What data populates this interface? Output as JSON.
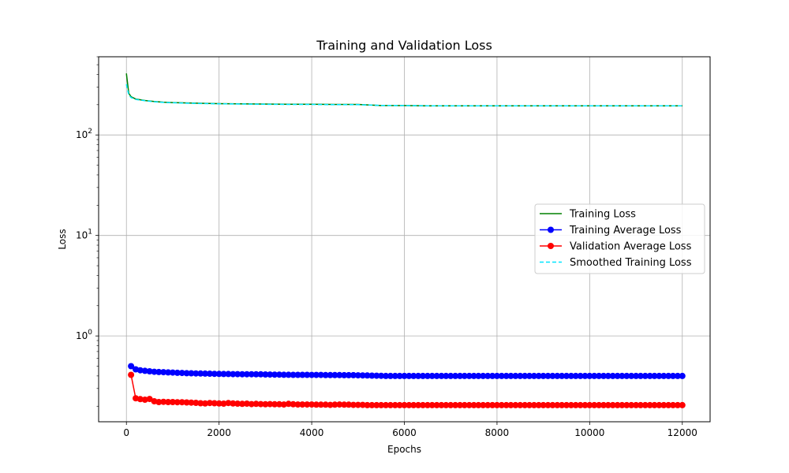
{
  "chart_data": {
    "type": "line",
    "title": "Training and Validation Loss",
    "xlabel": "Epochs",
    "ylabel": "Loss",
    "yscale": "log",
    "xlim": [
      -600,
      12600
    ],
    "ylim": [
      0.14,
      600
    ],
    "xticks": [
      0,
      2000,
      4000,
      6000,
      8000,
      10000,
      12000
    ],
    "xtick_labels": [
      "0",
      "2000",
      "4000",
      "6000",
      "8000",
      "10000",
      "12000"
    ],
    "yticks": [
      1,
      10,
      100
    ],
    "grid": true,
    "legend_placement": "center-right",
    "series": [
      {
        "name": "Training Loss",
        "color": "#008000",
        "style": "solid",
        "x": [
          0,
          50,
          100,
          200,
          400,
          600,
          800,
          1000,
          1500,
          2000,
          2500,
          3000,
          3500,
          4000,
          4500,
          5000,
          5500,
          6000,
          6500,
          7000,
          7500,
          8000,
          8500,
          9000,
          9500,
          10000,
          10500,
          11000,
          11500,
          12000
        ],
        "values": [
          410,
          260,
          240,
          228,
          220,
          215,
          212,
          210,
          207,
          205,
          204,
          203,
          202,
          202,
          201,
          201,
          196,
          196,
          195,
          195,
          195,
          195,
          195,
          195,
          195,
          195,
          195,
          195,
          195,
          195
        ]
      },
      {
        "name": "Training Average Loss",
        "color": "#0000ff",
        "style": "solid-marker",
        "x": [
          100,
          200,
          300,
          400,
          500,
          600,
          700,
          800,
          900,
          1000,
          1100,
          1200,
          1300,
          1400,
          1500,
          1600,
          1700,
          1800,
          1900,
          2000,
          2100,
          2200,
          2300,
          2400,
          2500,
          2600,
          2700,
          2800,
          2900,
          3000,
          3100,
          3200,
          3300,
          3400,
          3500,
          3600,
          3700,
          3800,
          3900,
          4000,
          4100,
          4200,
          4300,
          4400,
          4500,
          4600,
          4700,
          4800,
          4900,
          5000,
          5100,
          5200,
          5300,
          5400,
          5500,
          5600,
          5700,
          5800,
          5900,
          6000,
          6100,
          6200,
          6300,
          6400,
          6500,
          6600,
          6700,
          6800,
          6900,
          7000,
          7100,
          7200,
          7300,
          7400,
          7500,
          7600,
          7700,
          7800,
          7900,
          8000,
          8100,
          8200,
          8300,
          8400,
          8500,
          8600,
          8700,
          8800,
          8900,
          9000,
          9100,
          9200,
          9300,
          9400,
          9500,
          9600,
          9700,
          9800,
          9900,
          10000,
          10100,
          10200,
          10300,
          10400,
          10500,
          10600,
          10700,
          10800,
          10900,
          11000,
          11100,
          11200,
          11300,
          11400,
          11500,
          11600,
          11700,
          11800,
          11900,
          12000
        ],
        "values": [
          0.5,
          0.465,
          0.455,
          0.45,
          0.445,
          0.44,
          0.438,
          0.436,
          0.434,
          0.432,
          0.43,
          0.428,
          0.426,
          0.425,
          0.424,
          0.423,
          0.422,
          0.421,
          0.42,
          0.419,
          0.418,
          0.418,
          0.417,
          0.417,
          0.416,
          0.416,
          0.416,
          0.415,
          0.415,
          0.414,
          0.413,
          0.412,
          0.412,
          0.411,
          0.411,
          0.41,
          0.41,
          0.41,
          0.41,
          0.409,
          0.409,
          0.409,
          0.408,
          0.408,
          0.408,
          0.408,
          0.407,
          0.407,
          0.407,
          0.406,
          0.405,
          0.404,
          0.403,
          0.402,
          0.401,
          0.4,
          0.4,
          0.4,
          0.4,
          0.4,
          0.4,
          0.4,
          0.4,
          0.4,
          0.4,
          0.4,
          0.4,
          0.4,
          0.4,
          0.4,
          0.4,
          0.4,
          0.4,
          0.4,
          0.4,
          0.4,
          0.4,
          0.4,
          0.4,
          0.4,
          0.4,
          0.4,
          0.4,
          0.4,
          0.4,
          0.4,
          0.4,
          0.4,
          0.4,
          0.4,
          0.4,
          0.4,
          0.4,
          0.4,
          0.4,
          0.4,
          0.4,
          0.4,
          0.4,
          0.4,
          0.4,
          0.4,
          0.4,
          0.4,
          0.4,
          0.4,
          0.4,
          0.4,
          0.4,
          0.4,
          0.4,
          0.4,
          0.4,
          0.4,
          0.4,
          0.4,
          0.4,
          0.4,
          0.4,
          0.4
        ]
      },
      {
        "name": "Validation Average Loss",
        "color": "#ff0000",
        "style": "solid-marker",
        "x": [
          100,
          200,
          300,
          400,
          500,
          600,
          700,
          800,
          900,
          1000,
          1100,
          1200,
          1300,
          1400,
          1500,
          1600,
          1700,
          1800,
          1900,
          2000,
          2100,
          2200,
          2300,
          2400,
          2500,
          2600,
          2700,
          2800,
          2900,
          3000,
          3100,
          3200,
          3300,
          3400,
          3500,
          3600,
          3700,
          3800,
          3900,
          4000,
          4100,
          4200,
          4300,
          4400,
          4500,
          4600,
          4700,
          4800,
          4900,
          5000,
          5100,
          5200,
          5300,
          5400,
          5500,
          5600,
          5700,
          5800,
          5900,
          6000,
          6100,
          6200,
          6300,
          6400,
          6500,
          6600,
          6700,
          6800,
          6900,
          7000,
          7100,
          7200,
          7300,
          7400,
          7500,
          7600,
          7700,
          7800,
          7900,
          8000,
          8100,
          8200,
          8300,
          8400,
          8500,
          8600,
          8700,
          8800,
          8900,
          9000,
          9100,
          9200,
          9300,
          9400,
          9500,
          9600,
          9700,
          9800,
          9900,
          10000,
          10100,
          10200,
          10300,
          10400,
          10500,
          10600,
          10700,
          10800,
          10900,
          11000,
          11100,
          11200,
          11300,
          11400,
          11500,
          11600,
          11700,
          11800,
          11900,
          12000
        ],
        "values": [
          0.41,
          0.24,
          0.235,
          0.232,
          0.236,
          0.224,
          0.22,
          0.221,
          0.22,
          0.22,
          0.219,
          0.219,
          0.218,
          0.217,
          0.216,
          0.214,
          0.213,
          0.215,
          0.214,
          0.213,
          0.212,
          0.215,
          0.213,
          0.212,
          0.211,
          0.212,
          0.21,
          0.211,
          0.21,
          0.209,
          0.21,
          0.209,
          0.209,
          0.208,
          0.211,
          0.209,
          0.208,
          0.208,
          0.208,
          0.208,
          0.207,
          0.207,
          0.207,
          0.206,
          0.207,
          0.208,
          0.207,
          0.207,
          0.206,
          0.206,
          0.206,
          0.205,
          0.205,
          0.205,
          0.205,
          0.205,
          0.205,
          0.205,
          0.205,
          0.205,
          0.205,
          0.205,
          0.205,
          0.205,
          0.205,
          0.205,
          0.205,
          0.205,
          0.205,
          0.205,
          0.205,
          0.205,
          0.205,
          0.205,
          0.205,
          0.205,
          0.205,
          0.205,
          0.205,
          0.205,
          0.205,
          0.205,
          0.205,
          0.205,
          0.205,
          0.205,
          0.205,
          0.205,
          0.205,
          0.205,
          0.205,
          0.205,
          0.205,
          0.205,
          0.205,
          0.205,
          0.205,
          0.205,
          0.205,
          0.205,
          0.205,
          0.205,
          0.205,
          0.205,
          0.205,
          0.205,
          0.205,
          0.205,
          0.205,
          0.205,
          0.205,
          0.205,
          0.205,
          0.205,
          0.205,
          0.205,
          0.205,
          0.205,
          0.205,
          0.205
        ]
      },
      {
        "name": "Smoothed Training Loss",
        "color": "#00e5ff",
        "style": "dashed",
        "x": [
          0,
          50,
          100,
          200,
          400,
          600,
          800,
          1000,
          1500,
          2000,
          2500,
          3000,
          3500,
          4000,
          4500,
          5000,
          5500,
          6000,
          6500,
          7000,
          7500,
          8000,
          8500,
          9000,
          9500,
          10000,
          10500,
          11000,
          11500,
          12000
        ],
        "values": [
          320,
          250,
          236,
          226,
          219,
          214,
          211,
          209,
          206,
          204,
          203,
          202,
          201,
          201,
          200,
          200,
          197,
          196,
          195,
          195,
          195,
          195,
          195,
          195,
          195,
          195,
          195,
          195,
          195,
          195
        ]
      }
    ]
  }
}
